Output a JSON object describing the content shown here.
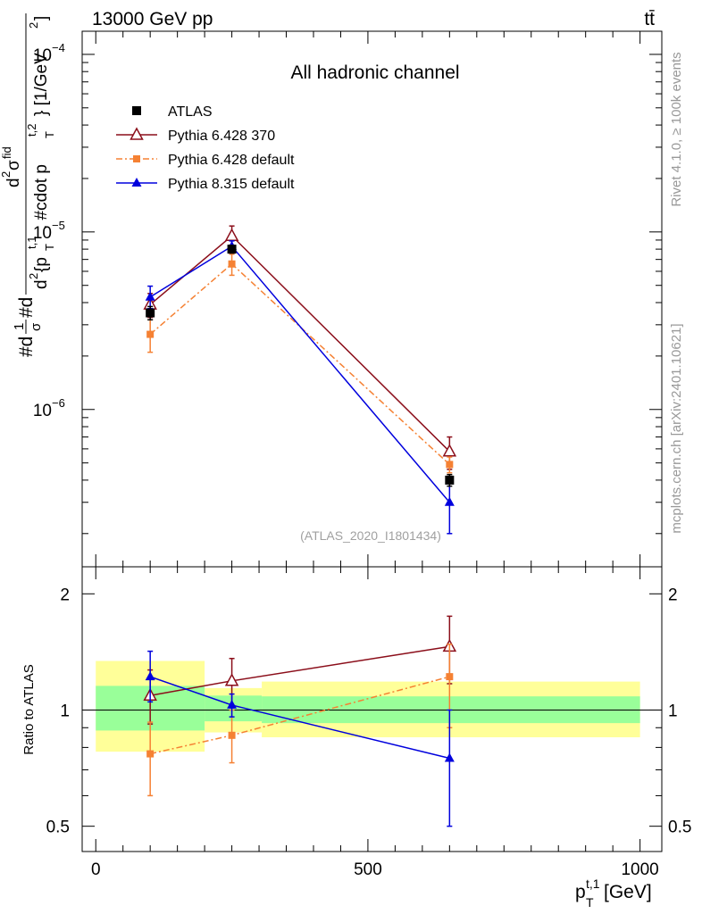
{
  "header": {
    "beam": "13000 GeV pp",
    "process": "tt̄"
  },
  "side_labels": {
    "rivet": "Rivet 4.1.0, ≥ 100k events",
    "mcplots": "mcplots.cern.ch [arXiv:2401.10621]"
  },
  "chart_data": [
    {
      "id": "main",
      "type": "scatter",
      "title": "All hadronic channel",
      "analysis_tag": "(ATLAS_2020_I1801434)",
      "yscale": "log",
      "ylabel_parts": {
        "a": "#d",
        "b": "1",
        "c": "σ",
        "d": "#d",
        "e": "d",
        "f": "2",
        "g": "σ",
        "h": "fid",
        "i": "d",
        "j": "2",
        "k": "{p",
        "l": "T",
        "m": "t,1",
        "n": ", #cdot p",
        "o": "T",
        "p": "t,2",
        "q": "} [1/GeV",
        "r": "2",
        "s": "]"
      },
      "xlim": [
        -25,
        1040
      ],
      "ylim": [
        1.3e-07,
        0.000135
      ],
      "yticks": [
        {
          "value": 1e-06,
          "base": "10",
          "exp": "−6"
        },
        {
          "value": 1e-05,
          "base": "10",
          "exp": "−5"
        },
        {
          "value": 0.0001,
          "base": "10",
          "exp": "−4"
        }
      ],
      "legend": {
        "position": "top-left"
      },
      "series": [
        {
          "name": "ATLAS",
          "marker": "square",
          "color": "#000000",
          "dash": "",
          "line": false,
          "points": [
            {
              "x": 100,
              "y": 3.5e-06,
              "lo": 3.2e-06,
              "hi": 3.8e-06
            },
            {
              "x": 250,
              "y": 8e-06,
              "lo": 7.6e-06,
              "hi": 8.4e-06
            },
            {
              "x": 650,
              "y": 4e-07,
              "lo": 3.7e-07,
              "hi": 4.3e-07
            }
          ]
        },
        {
          "name": "Pythia 6.428 370",
          "marker": "open-triangle",
          "color": "#8b0e1a",
          "dash": "",
          "line": true,
          "points": [
            {
              "x": 100,
              "y": 3.9e-06,
              "lo": 3.3e-06,
              "hi": 4.5e-06
            },
            {
              "x": 250,
              "y": 9.5e-06,
              "lo": 8.3e-06,
              "hi": 1.08e-05
            },
            {
              "x": 650,
              "y": 5.8e-07,
              "lo": 4.6e-07,
              "hi": 7e-07
            }
          ]
        },
        {
          "name": "Pythia 6.428 default",
          "marker": "small-square",
          "color": "#f58133",
          "dash": "7,3,2,3",
          "line": true,
          "points": [
            {
              "x": 100,
              "y": 2.65e-06,
              "lo": 2.1e-06,
              "hi": 3.2e-06
            },
            {
              "x": 250,
              "y": 6.6e-06,
              "lo": 5.7e-06,
              "hi": 7.5e-06
            },
            {
              "x": 650,
              "y": 4.9e-07,
              "lo": 4.4e-07,
              "hi": 5.4e-07
            }
          ]
        },
        {
          "name": "Pythia 8.315 default",
          "marker": "triangle",
          "color": "#0000dd",
          "dash": "",
          "line": true,
          "points": [
            {
              "x": 100,
              "y": 4.3e-06,
              "lo": 3.7e-06,
              "hi": 4.95e-06
            },
            {
              "x": 250,
              "y": 8.3e-06,
              "lo": 7.7e-06,
              "hi": 8.9e-06
            },
            {
              "x": 650,
              "y": 3e-07,
              "lo": 2e-07,
              "hi": 4e-07
            }
          ]
        }
      ]
    },
    {
      "id": "ratio",
      "type": "scatter",
      "yscale": "log",
      "ylabel": "Ratio to ATLAS",
      "xlabel_parts": {
        "main": "p",
        "sub": "T",
        "sup": "t,1",
        "unit": " [GeV]"
      },
      "xlim": [
        -25,
        1040
      ],
      "ylim": [
        0.43,
        2.35
      ],
      "xticks": [
        0,
        500,
        1000
      ],
      "yticks": [
        0.5,
        1,
        2
      ],
      "reference": 1,
      "bands": [
        {
          "x0": 0,
          "x1": 200,
          "inner": [
            0.885,
            1.155
          ],
          "outer": [
            0.78,
            1.34
          ]
        },
        {
          "x0": 200,
          "x1": 305,
          "inner": [
            0.935,
            1.09
          ],
          "outer": [
            0.875,
            1.14
          ]
        },
        {
          "x0": 305,
          "x1": 1000,
          "inner": [
            0.925,
            1.085
          ],
          "outer": [
            0.85,
            1.185
          ]
        }
      ],
      "series": [
        {
          "name": "Pythia 6.428 370",
          "marker": "open-triangle",
          "color": "#8b0e1a",
          "dash": "",
          "points": [
            {
              "x": 100,
              "y": 1.09,
              "lo": 0.92,
              "hi": 1.27
            },
            {
              "x": 250,
              "y": 1.19,
              "lo": 1.03,
              "hi": 1.36
            },
            {
              "x": 650,
              "y": 1.46,
              "lo": 1.17,
              "hi": 1.75
            }
          ]
        },
        {
          "name": "Pythia 6.428 default",
          "marker": "small-square",
          "color": "#f58133",
          "dash": "7,3,2,3",
          "points": [
            {
              "x": 100,
              "y": 0.77,
              "lo": 0.6,
              "hi": 0.93
            },
            {
              "x": 250,
              "y": 0.86,
              "lo": 0.73,
              "hi": 1.0
            },
            {
              "x": 650,
              "y": 1.22,
              "lo": 0.9,
              "hi": 1.48
            }
          ]
        },
        {
          "name": "Pythia 8.315 default",
          "marker": "triangle",
          "color": "#0000dd",
          "dash": "",
          "points": [
            {
              "x": 100,
              "y": 1.22,
              "lo": 1.05,
              "hi": 1.42
            },
            {
              "x": 250,
              "y": 1.03,
              "lo": 0.96,
              "hi": 1.1
            },
            {
              "x": 650,
              "y": 0.75,
              "lo": 0.5,
              "hi": 1.0
            }
          ]
        }
      ]
    }
  ]
}
